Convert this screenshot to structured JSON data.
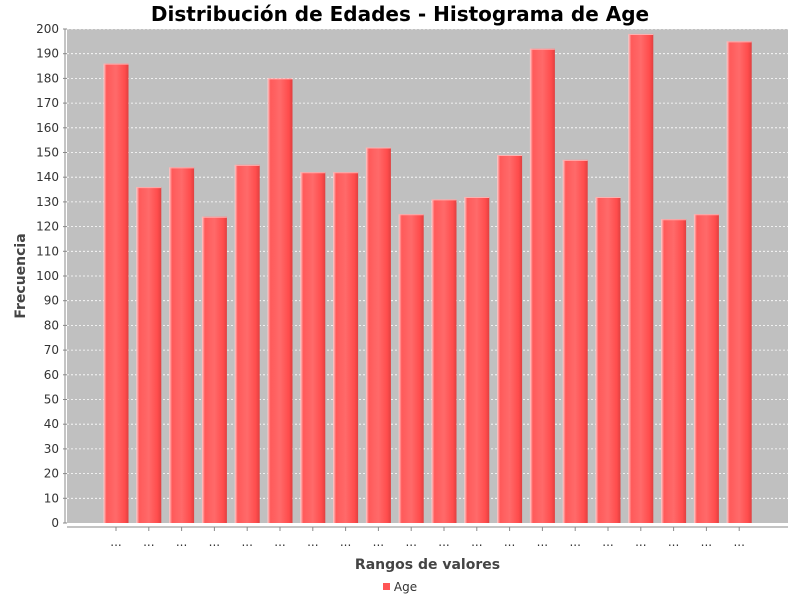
{
  "chart_data": {
    "type": "bar",
    "title": "Distribución de Edades - Histograma de Age",
    "xlabel": "Rangos de valores",
    "ylabel": "Frecuencia",
    "categories": [
      "...",
      "...",
      "...",
      "...",
      "...",
      "...",
      "...",
      "...",
      "...",
      "...",
      "...",
      "...",
      "...",
      "...",
      "...",
      "...",
      "...",
      "...",
      "...",
      "..."
    ],
    "series": [
      {
        "name": "Age",
        "values": [
          186,
          136,
          144,
          124,
          145,
          180,
          142,
          142,
          152,
          125,
          131,
          132,
          149,
          192,
          147,
          132,
          198,
          123,
          125,
          195
        ]
      }
    ],
    "ylim": [
      0,
      200
    ],
    "y_ticks": [
      0,
      10,
      20,
      30,
      40,
      50,
      60,
      70,
      80,
      90,
      100,
      110,
      120,
      130,
      140,
      150,
      160,
      170,
      180,
      190,
      200
    ],
    "grid": true,
    "legend_position": "bottom",
    "colors": {
      "bar": "#ff5555",
      "plot_background": "#c0c0c0",
      "gridline": "#ffffff"
    }
  }
}
